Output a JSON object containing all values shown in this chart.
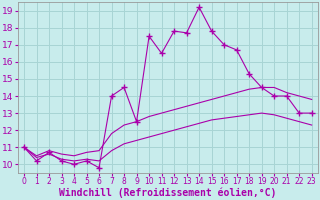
{
  "xlabel": "Windchill (Refroidissement éolien,°C)",
  "bg_color": "#c8ecec",
  "grid_color": "#a8d4d4",
  "line_color": "#aa00aa",
  "xlim": [
    -0.5,
    23.5
  ],
  "ylim": [
    9.5,
    19.5
  ],
  "xticks": [
    0,
    1,
    2,
    3,
    4,
    5,
    6,
    7,
    8,
    9,
    10,
    11,
    12,
    13,
    14,
    15,
    16,
    17,
    18,
    19,
    20,
    21,
    22,
    23
  ],
  "yticks": [
    10,
    11,
    12,
    13,
    14,
    15,
    16,
    17,
    18,
    19
  ],
  "curve1_x": [
    0,
    1,
    2,
    3,
    4,
    5,
    6,
    7,
    8,
    9,
    10,
    11,
    12,
    13,
    14,
    15,
    16,
    17,
    18,
    19,
    20,
    21,
    22,
    23
  ],
  "curve1_y": [
    11.0,
    10.2,
    10.7,
    10.2,
    10.0,
    10.2,
    9.8,
    14.0,
    14.5,
    12.5,
    17.5,
    16.5,
    17.8,
    17.7,
    19.2,
    17.8,
    17.0,
    16.7,
    15.3,
    14.5,
    14.0,
    14.0,
    13.0,
    13.0
  ],
  "curve2_x": [
    0,
    1,
    2,
    3,
    4,
    5,
    6,
    7,
    8,
    9,
    10,
    11,
    12,
    13,
    14,
    15,
    16,
    17,
    18,
    19,
    20,
    21,
    22,
    23
  ],
  "curve2_y": [
    11.0,
    10.5,
    10.8,
    10.6,
    10.5,
    10.7,
    10.8,
    11.8,
    12.3,
    12.5,
    12.8,
    13.0,
    13.2,
    13.4,
    13.6,
    13.8,
    14.0,
    14.2,
    14.4,
    14.5,
    14.5,
    14.2,
    14.0,
    13.8
  ],
  "curve3_x": [
    0,
    1,
    2,
    3,
    4,
    5,
    6,
    7,
    8,
    9,
    10,
    11,
    12,
    13,
    14,
    15,
    16,
    17,
    18,
    19,
    20,
    21,
    22,
    23
  ],
  "curve3_y": [
    11.0,
    10.4,
    10.6,
    10.3,
    10.2,
    10.3,
    10.2,
    10.8,
    11.2,
    11.4,
    11.6,
    11.8,
    12.0,
    12.2,
    12.4,
    12.6,
    12.7,
    12.8,
    12.9,
    13.0,
    12.9,
    12.7,
    12.5,
    12.3
  ],
  "xlabel_fontsize": 7,
  "ytick_fontsize": 6.5,
  "xtick_fontsize": 5.5
}
